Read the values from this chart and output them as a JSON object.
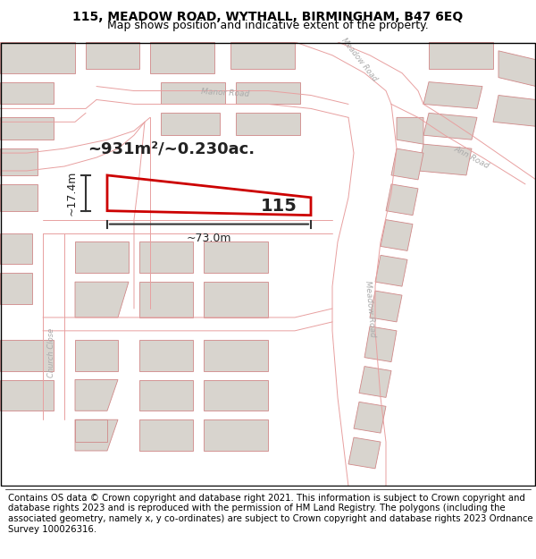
{
  "title_line1": "115, MEADOW ROAD, WYTHALL, BIRMINGHAM, B47 6EQ",
  "title_line2": "Map shows position and indicative extent of the property.",
  "area_text": "~931m²/~0.230ac.",
  "property_number": "115",
  "dim_width": "~73.0m",
  "dim_height": "~17.4m",
  "footer_text": "Contains OS data © Crown copyright and database right 2021. This information is subject to Crown copyright and database rights 2023 and is reproduced with the permission of HM Land Registry. The polygons (including the associated geometry, namely x, y co-ordinates) are subject to Crown copyright and database rights 2023 Ordnance Survey 100026316.",
  "map_bg": "#ffffff",
  "road_line_color": "#e8a0a0",
  "road_line_lw": 0.7,
  "building_fill": "#d8d4ce",
  "building_edge": "#d08888",
  "building_edge_lw": 0.6,
  "highlight_edge": "#cc0000",
  "highlight_lw": 2.0,
  "title_fontsize": 10,
  "subtitle_fontsize": 9,
  "footer_fontsize": 7.3,
  "road_label_color": "#aaaaaa",
  "road_label_size": 6.5,
  "annotation_color": "#222222",
  "area_fontsize": 13,
  "num_fontsize": 14
}
